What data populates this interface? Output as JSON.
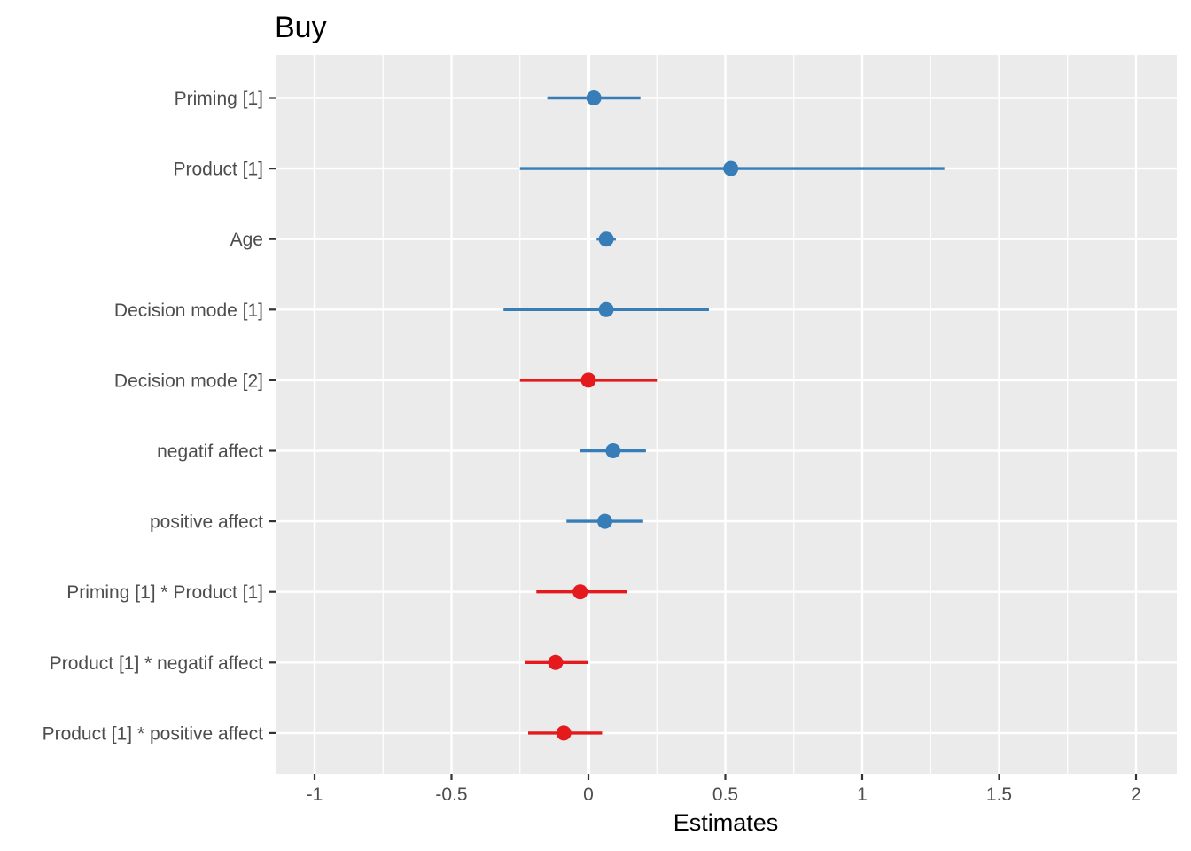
{
  "chart_data": {
    "type": "forest",
    "title": "Buy",
    "xlabel": "Estimates",
    "ylabel": "",
    "xlim": [
      -1.15,
      2.15
    ],
    "x_ticks": [
      -1,
      -0.5,
      0,
      0.5,
      1,
      1.5,
      2
    ],
    "x_tick_labels": [
      "-1",
      "-0.5",
      "0",
      "0.5",
      "1",
      "1.5",
      "2"
    ],
    "grid": true,
    "legend": "none",
    "colors": {
      "positive": "#377eb8",
      "negative": "#e41a1c",
      "panel": "#ebebeb",
      "grid": "#ffffff"
    },
    "terms": [
      {
        "label": "Priming [1]",
        "estimate": 0.02,
        "low": -0.15,
        "high": 0.19,
        "sign": "positive"
      },
      {
        "label": "Product [1]",
        "estimate": 0.52,
        "low": -0.25,
        "high": 1.3,
        "sign": "positive"
      },
      {
        "label": "Age",
        "estimate": 0.065,
        "low": 0.03,
        "high": 0.1,
        "sign": "positive"
      },
      {
        "label": "Decision mode [1]",
        "estimate": 0.065,
        "low": -0.31,
        "high": 0.44,
        "sign": "positive"
      },
      {
        "label": "Decision mode [2]",
        "estimate": 0.0,
        "low": -0.25,
        "high": 0.25,
        "sign": "negative"
      },
      {
        "label": "negatif affect",
        "estimate": 0.09,
        "low": -0.03,
        "high": 0.21,
        "sign": "positive"
      },
      {
        "label": "positive affect",
        "estimate": 0.06,
        "low": -0.08,
        "high": 0.2,
        "sign": "positive"
      },
      {
        "label": "Priming [1] * Product [1]",
        "estimate": -0.03,
        "low": -0.19,
        "high": 0.14,
        "sign": "negative"
      },
      {
        "label": "Product [1] * negatif affect",
        "estimate": -0.12,
        "low": -0.23,
        "high": 0.0,
        "sign": "negative"
      },
      {
        "label": "Product [1] * positive affect",
        "estimate": -0.09,
        "low": -0.22,
        "high": 0.05,
        "sign": "negative"
      }
    ]
  }
}
